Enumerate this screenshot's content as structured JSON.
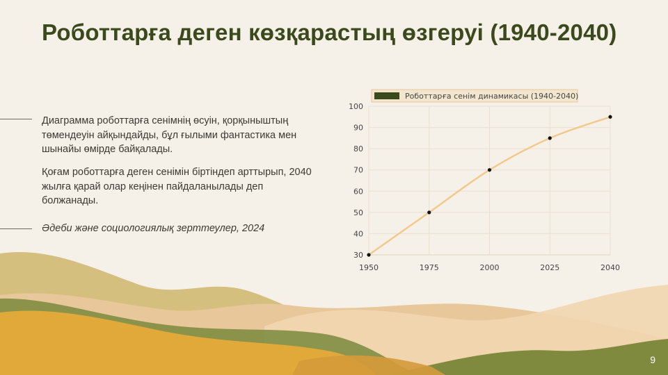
{
  "slide": {
    "title": "Роботтарға деген көзқарастың өзгеруі (1940-2040)",
    "paragraph1": "Диаграмма роботтарға сенімнің өсуін, қорқыныштың төмендеуін айқындайды, бұл ғылыми фантастика мен шынайы өмірде байқалады.",
    "paragraph2": "Қоғам роботтарға деген сенімін біртіндеп арттырып, 2040 жылға қарай олар кеңінен пайдаланылады деп болжанады.",
    "source": "Әдеби және социологиялық зерттеулер, 2024",
    "page_number": "9"
  },
  "colors": {
    "title": "#3b4a1c",
    "line": "#f2c98a",
    "legend_swatch": "#3b4a1c",
    "point": "#111111"
  },
  "chart_data": {
    "type": "line",
    "title": "",
    "xlabel": "",
    "ylabel": "",
    "legend_position": "top",
    "grid": true,
    "x": [
      "1950",
      "1975",
      "2000",
      "2025",
      "2040"
    ],
    "ylim": [
      30,
      100
    ],
    "yticks": [
      "30",
      "40",
      "50",
      "60",
      "70",
      "80",
      "90",
      "100"
    ],
    "series": [
      {
        "name": "Роботтарға сенім динамикасы (1940-2040)",
        "values": [
          30,
          50,
          70,
          85,
          95
        ]
      }
    ]
  }
}
